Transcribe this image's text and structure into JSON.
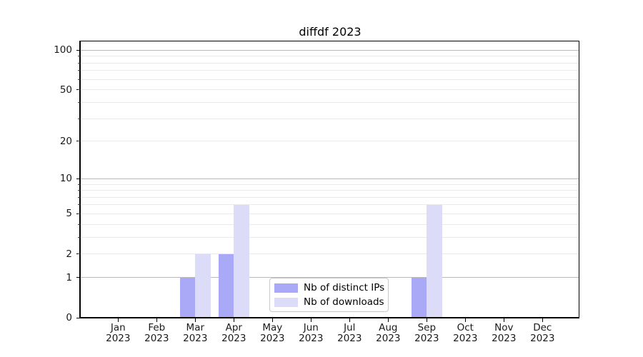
{
  "figure": {
    "background": "#ffffff"
  },
  "chart_data": {
    "type": "bar",
    "title": "diffdf 2023",
    "categories": [
      "Jan 2023",
      "Feb 2023",
      "Mar 2023",
      "Apr 2023",
      "May 2023",
      "Jun 2023",
      "Jul 2023",
      "Aug 2023",
      "Sep 2023",
      "Oct 2023",
      "Nov 2023",
      "Dec 2023"
    ],
    "series": [
      {
        "name": "Nb of distinct IPs",
        "color": "#a9a9f8",
        "values": [
          0,
          0,
          1,
          2,
          0,
          0,
          0,
          0,
          1,
          0,
          0,
          0
        ]
      },
      {
        "name": "Nb of downloads",
        "color": "#dcdcf9",
        "values": [
          0,
          0,
          2,
          6,
          0,
          0,
          0,
          0,
          6,
          0,
          0,
          0
        ]
      }
    ],
    "xlabel": "",
    "ylabel": "",
    "y_axis": {
      "scale": "log10(1+v)",
      "tick_labels": [
        0,
        1,
        2,
        5,
        10,
        20,
        50,
        100
      ],
      "decade_grid_values": [
        1,
        10,
        100
      ],
      "minor_grid_values": [
        2,
        3,
        4,
        5,
        6,
        7,
        8,
        9,
        20,
        30,
        40,
        50,
        60,
        70,
        80,
        90
      ],
      "ylim_bottom": 0,
      "ylim_top_approx": 117
    },
    "grid": true,
    "legend_position": "lower center"
  },
  "colors": {
    "bar_distinct_ips": "#a9a9f8",
    "bar_downloads": "#dcdcf9",
    "decade_grid": "#b9b9b9",
    "minor_grid": "#eaeaea",
    "axis_line": "#000000",
    "text": "#1a1a1a",
    "legend_border": "#c9c9c9"
  }
}
